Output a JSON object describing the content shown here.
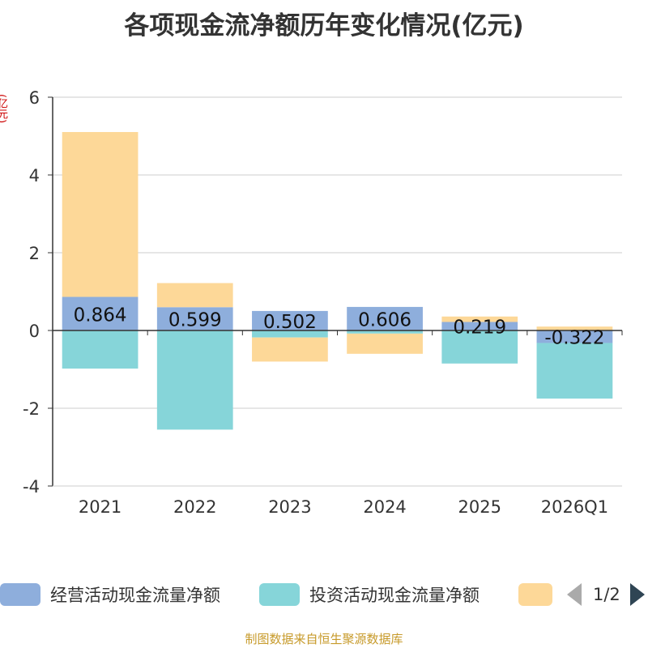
{
  "chart_data": {
    "type": "bar",
    "title": "各项现金流净额历年变化情况(亿元)",
    "unit_label": "(亿元)",
    "categories": [
      "2021",
      "2022",
      "2023",
      "2024",
      "2025",
      "2026Q1"
    ],
    "ylim": [
      -4,
      6
    ],
    "yticks": [
      6,
      4,
      2,
      0,
      -2,
      -4
    ],
    "grid": true,
    "stacked": true,
    "series": [
      {
        "name": "经营活动现金流量净额",
        "color": "#8eaedc",
        "values": [
          0.864,
          0.599,
          0.502,
          0.606,
          0.219,
          -0.322
        ],
        "labels": [
          "0.864",
          "0.599",
          "0.502",
          "0.606",
          "0.219",
          "-0.322"
        ]
      },
      {
        "name": "投资活动现金流量净额",
        "color": "#86d5d9",
        "values": [
          -0.98,
          -2.55,
          -0.18,
          -0.08,
          -0.85,
          -1.43
        ]
      },
      {
        "name": "",
        "color": "#fdd898",
        "values": [
          4.24,
          0.62,
          -0.62,
          -0.52,
          0.14,
          0.1
        ]
      }
    ],
    "legend_position": "bottom"
  },
  "legend": {
    "page": "1/2"
  },
  "source": "制图数据来自恒生聚源数据库"
}
